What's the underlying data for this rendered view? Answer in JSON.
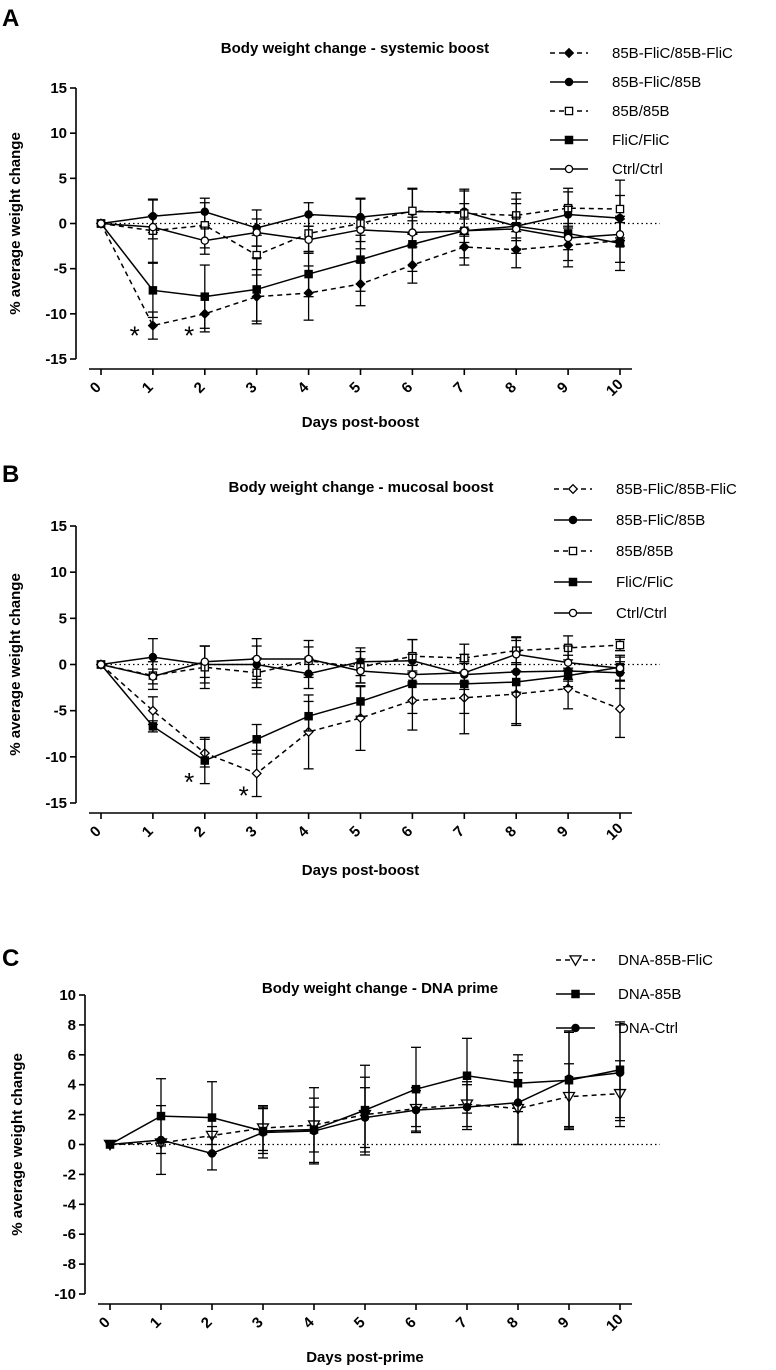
{
  "figure": {
    "background": "#ffffff",
    "ink": "#000000"
  },
  "chart_data": [
    {
      "id": "A",
      "type": "line",
      "panel_label": "A",
      "title": "Body weight change - systemic boost",
      "xlabel": "Days post-boost",
      "ylabel": "% average weight change",
      "ylim": [
        -15,
        15
      ],
      "yticks": [
        -15,
        -10,
        -5,
        0,
        5,
        10,
        15
      ],
      "xticks": [
        0,
        1,
        2,
        3,
        4,
        5,
        6,
        7,
        8,
        9,
        10
      ],
      "grid": false,
      "legend_position": "top-right",
      "annotations": [
        {
          "text": "*",
          "x": 0.65,
          "y": -12.3
        },
        {
          "text": "*",
          "x": 1.7,
          "y": -12.3
        }
      ],
      "x": [
        0,
        1,
        2,
        3,
        4,
        5,
        6,
        7,
        8,
        9,
        10
      ],
      "series": [
        {
          "name": "85B-FliC/85B-FliC",
          "marker": "diamond",
          "filled": true,
          "dashed": true,
          "values": [
            0,
            -11.3,
            -10,
            -8.1,
            -7.7,
            -6.7,
            -4.6,
            -2.6,
            -2.9,
            -2.4,
            -1.9
          ],
          "errors": [
            0,
            1.5,
            2.0,
            3.0,
            3.0,
            2.4,
            2.0,
            2.0,
            2.0,
            2.4,
            2.4
          ]
        },
        {
          "name": "85B-FliC/85B",
          "marker": "circle",
          "filled": true,
          "dashed": false,
          "values": [
            0,
            0.8,
            1.3,
            -0.5,
            1.0,
            0.7,
            1.3,
            1.3,
            -0.3,
            1.0,
            0.6
          ],
          "errors": [
            0,
            1.8,
            1.5,
            2.0,
            1.3,
            2.0,
            2.5,
            2.5,
            2.5,
            2.5,
            2.5
          ]
        },
        {
          "name": "85B/85B",
          "marker": "square",
          "filled": false,
          "dashed": true,
          "values": [
            0,
            -0.8,
            -0.2,
            -3.5,
            -1.1,
            0.0,
            1.4,
            1.1,
            0.9,
            1.7,
            1.6
          ],
          "errors": [
            0,
            3.5,
            2.5,
            2.2,
            2.0,
            2.8,
            2.5,
            2.5,
            2.5,
            2.2,
            3.2
          ]
        },
        {
          "name": "FliC/FliC",
          "marker": "square",
          "filled": true,
          "dashed": false,
          "values": [
            0,
            -7.4,
            -8.1,
            -7.3,
            -5.6,
            -4.0,
            -2.3,
            -0.8,
            -0.3,
            -1.1,
            -2.2
          ],
          "errors": [
            0,
            3.0,
            3.5,
            3.5,
            2.5,
            3.5,
            3.0,
            3.0,
            3.0,
            3.0,
            3.0
          ]
        },
        {
          "name": "Ctrl/Ctrl",
          "marker": "circle",
          "filled": false,
          "dashed": false,
          "values": [
            0,
            -0.4,
            -1.9,
            -1.0,
            -1.8,
            -0.7,
            -1.0,
            -0.8,
            -0.6,
            -1.6,
            -1.2
          ],
          "errors": [
            0,
            1.3,
            1.5,
            1.5,
            1.5,
            1.3,
            1.3,
            1.3,
            1.3,
            1.3,
            1.3
          ]
        }
      ]
    },
    {
      "id": "B",
      "type": "line",
      "panel_label": "B",
      "title": "Body weight change - mucosal boost",
      "xlabel": "Days post-boost",
      "ylabel": "% average weight change",
      "ylim": [
        -15,
        15
      ],
      "yticks": [
        -15,
        -10,
        -5,
        0,
        5,
        10,
        15
      ],
      "xticks": [
        0,
        1,
        2,
        3,
        4,
        5,
        6,
        7,
        8,
        9,
        10
      ],
      "grid": false,
      "legend_position": "top-right",
      "annotations": [
        {
          "text": "*",
          "x": 1.7,
          "y": -12.6
        },
        {
          "text": "*",
          "x": 2.75,
          "y": -14.1
        }
      ],
      "x": [
        0,
        1,
        2,
        3,
        4,
        5,
        6,
        7,
        8,
        9,
        10
      ],
      "series": [
        {
          "name": "85B-FliC/85B-FliC",
          "marker": "diamond",
          "filled": false,
          "dashed": true,
          "values": [
            0,
            -5.0,
            -9.6,
            -11.8,
            -7.3,
            -5.8,
            -3.9,
            -3.6,
            -3.2,
            -2.6,
            -4.8
          ],
          "errors": [
            0,
            1.5,
            1.5,
            2.5,
            4.0,
            3.5,
            3.2,
            3.9,
            3.4,
            2.2,
            3.1
          ]
        },
        {
          "name": "85B-FliC/85B",
          "marker": "circle",
          "filled": true,
          "dashed": false,
          "values": [
            0,
            0.8,
            0.0,
            0.0,
            -1.0,
            0.3,
            0.4,
            -1.1,
            -0.8,
            -0.7,
            -0.9
          ],
          "errors": [
            0,
            2.0,
            2.0,
            2.0,
            1.6,
            1.5,
            2.3,
            1.6,
            2.2,
            1.7,
            1.7
          ]
        },
        {
          "name": "85B/85B",
          "marker": "square",
          "filled": false,
          "dashed": true,
          "values": [
            0,
            -1.2,
            -0.3,
            -0.9,
            0.4,
            -0.3,
            0.9,
            0.7,
            1.5,
            1.8,
            2.1
          ],
          "errors": [
            0,
            1.5,
            2.3,
            1.6,
            1.5,
            1.7,
            1.8,
            1.5,
            1.5,
            1.3,
            0.6
          ]
        },
        {
          "name": "FliC/FliC",
          "marker": "square",
          "filled": true,
          "dashed": false,
          "values": [
            0,
            -6.7,
            -10.4,
            -8.1,
            -5.6,
            -4.0,
            -2.1,
            -2.1,
            -1.9,
            -1.2,
            -0.3
          ],
          "errors": [
            0,
            0.6,
            2.5,
            1.6,
            1.6,
            1.6,
            3.2,
            3.2,
            4.5,
            0.6,
            0.6
          ]
        },
        {
          "name": "Ctrl/Ctrl",
          "marker": "circle",
          "filled": false,
          "dashed": false,
          "values": [
            0,
            -1.3,
            0.3,
            0.6,
            0.6,
            -0.7,
            -1.1,
            -0.9,
            1.1,
            0.2,
            -0.4
          ],
          "errors": [
            0,
            0.8,
            1.7,
            2.2,
            2.0,
            1.3,
            1.0,
            1.0,
            1.8,
            1.8,
            1.4
          ]
        }
      ]
    },
    {
      "id": "C",
      "type": "line",
      "panel_label": "C",
      "title": "Body weight change - DNA prime",
      "xlabel": "Days post-prime",
      "ylabel": "% average weight change",
      "ylim": [
        -10,
        10
      ],
      "yticks": [
        -10,
        -8,
        -6,
        -4,
        -2,
        0,
        2,
        4,
        6,
        8,
        10
      ],
      "xticks": [
        0,
        1,
        2,
        3,
        4,
        5,
        6,
        7,
        8,
        9,
        10
      ],
      "grid": false,
      "legend_position": "top-right",
      "annotations": [],
      "x": [
        0,
        1,
        2,
        3,
        4,
        5,
        6,
        7,
        8,
        9,
        10
      ],
      "series": [
        {
          "name": "DNA-85B-FliC",
          "marker": "triangle-down",
          "filled": false,
          "dashed": true,
          "values": [
            0,
            0.1,
            0.6,
            1.1,
            1.3,
            2.0,
            2.4,
            2.7,
            2.4,
            3.2,
            3.4
          ],
          "errors": [
            0,
            0.2,
            0.6,
            1.5,
            2.5,
            2.5,
            1.2,
            1.5,
            2.4,
            2.2,
            2.2
          ]
        },
        {
          "name": "DNA-85B",
          "marker": "square",
          "filled": true,
          "dashed": false,
          "values": [
            0,
            1.9,
            1.8,
            0.9,
            1.0,
            2.3,
            3.7,
            4.6,
            4.1,
            4.3,
            5.0
          ],
          "errors": [
            0,
            2.5,
            2.4,
            1.5,
            1.5,
            3.0,
            2.8,
            2.5,
            1.9,
            3.2,
            3.2
          ]
        },
        {
          "name": "DNA-Ctrl",
          "marker": "circle",
          "filled": true,
          "dashed": false,
          "values": [
            0,
            0.3,
            -0.6,
            0.8,
            0.9,
            1.8,
            2.3,
            2.5,
            2.8,
            4.4,
            4.8
          ],
          "errors": [
            0,
            2.3,
            1.1,
            1.7,
            2.2,
            2.0,
            1.5,
            1.5,
            2.8,
            3.2,
            3.2
          ]
        }
      ]
    }
  ]
}
